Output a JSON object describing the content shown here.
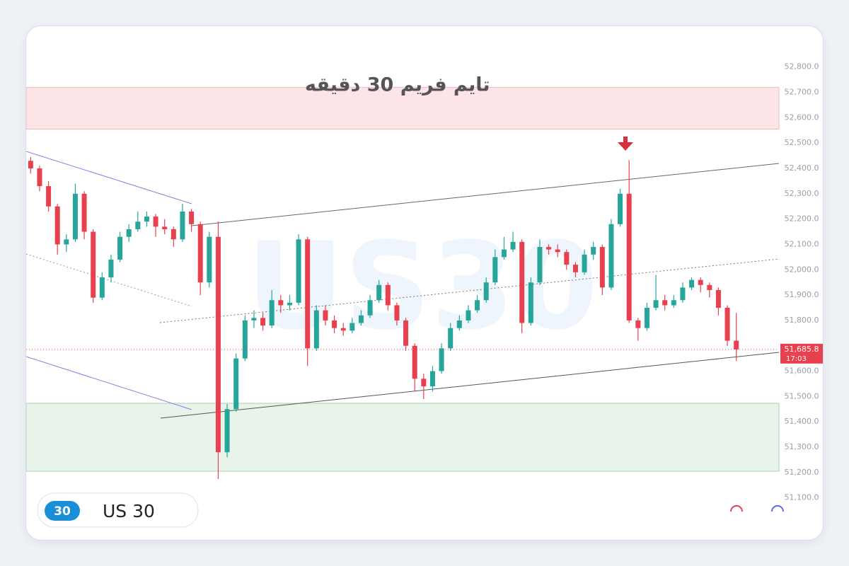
{
  "chart_data": {
    "type": "candlestick",
    "title": "تايم فريم 30 دقيقه",
    "watermark": "US30",
    "symbol": "US 30",
    "badge": "30",
    "up_color": "#26a69a",
    "down_color": "#e8404f",
    "ylim": [
      50940,
      52950
    ],
    "yticks": [
      {
        "value": 51100,
        "label": "51,100.0"
      },
      {
        "value": 51200,
        "label": "51,200.0"
      },
      {
        "value": 51300,
        "label": "51,300.0"
      },
      {
        "value": 51400,
        "label": "51,400.0"
      },
      {
        "value": 51500,
        "label": "51,500.0"
      },
      {
        "value": 51600,
        "label": "51,600.0"
      },
      {
        "value": 51800,
        "label": "51,800.0"
      },
      {
        "value": 51900,
        "label": "51,900.0"
      },
      {
        "value": 52000,
        "label": "52,000.0"
      },
      {
        "value": 52100,
        "label": "52,100.0"
      },
      {
        "value": 52200,
        "label": "52,200.0"
      },
      {
        "value": 52300,
        "label": "52,300.0"
      },
      {
        "value": 52400,
        "label": "52,400.0"
      },
      {
        "value": 52500,
        "label": "52,500.0"
      },
      {
        "value": 52600,
        "label": "52,600.0"
      },
      {
        "value": 52700,
        "label": "52,700.0"
      },
      {
        "value": 52800,
        "label": "52,800.0"
      }
    ],
    "last_price": {
      "value": 51685.8,
      "label": "51,685.8"
    },
    "countdown": "17:03",
    "zones": [
      {
        "low": 52555,
        "high": 52720,
        "color": "#fde4e6",
        "border": "#f4b9bf"
      },
      {
        "low": 51205,
        "high": 51473,
        "color": "#e8f3ea",
        "border": "#a9d5b4"
      }
    ],
    "ohlc": [
      [
        52430,
        52445,
        52380,
        52400
      ],
      [
        52400,
        52410,
        52310,
        52330
      ],
      [
        52330,
        52350,
        52230,
        52250
      ],
      [
        52250,
        52260,
        52060,
        52100
      ],
      [
        52100,
        52140,
        52070,
        52120
      ],
      [
        52120,
        52340,
        52110,
        52300
      ],
      [
        52300,
        52310,
        52120,
        52150
      ],
      [
        52150,
        52160,
        51870,
        51890
      ],
      [
        51890,
        51990,
        51880,
        51970
      ],
      [
        51970,
        52060,
        51950,
        52040
      ],
      [
        52040,
        52150,
        52030,
        52130
      ],
      [
        52130,
        52180,
        52110,
        52160
      ],
      [
        52160,
        52230,
        52150,
        52190
      ],
      [
        52190,
        52230,
        52170,
        52210
      ],
      [
        52210,
        52220,
        52130,
        52170
      ],
      [
        52170,
        52200,
        52140,
        52160
      ],
      [
        52160,
        52170,
        52090,
        52120
      ],
      [
        52120,
        52260,
        52110,
        52230
      ],
      [
        52230,
        52240,
        52150,
        52180
      ],
      [
        52180,
        52190,
        51900,
        51950
      ],
      [
        51950,
        52150,
        51930,
        52130
      ],
      [
        52130,
        52190,
        51175,
        51280
      ],
      [
        51280,
        51470,
        51260,
        51450
      ],
      [
        51450,
        51670,
        51440,
        51650
      ],
      [
        51650,
        51820,
        51640,
        51800
      ],
      [
        51800,
        51840,
        51770,
        51810
      ],
      [
        51810,
        51830,
        51760,
        51780
      ],
      [
        51780,
        51920,
        51770,
        51880
      ],
      [
        51880,
        51900,
        51830,
        51860
      ],
      [
        51860,
        51900,
        51840,
        51870
      ],
      [
        51870,
        52140,
        51860,
        52120
      ],
      [
        52120,
        52130,
        51620,
        51690
      ],
      [
        51690,
        51860,
        51680,
        51840
      ],
      [
        51840,
        51860,
        51780,
        51800
      ],
      [
        51800,
        51820,
        51750,
        51770
      ],
      [
        51770,
        51790,
        51740,
        51760
      ],
      [
        51760,
        51810,
        51750,
        51790
      ],
      [
        51790,
        51840,
        51780,
        51820
      ],
      [
        51820,
        51900,
        51810,
        51880
      ],
      [
        51880,
        51960,
        51870,
        51940
      ],
      [
        51940,
        51950,
        51840,
        51860
      ],
      [
        51860,
        51870,
        51780,
        51800
      ],
      [
        51800,
        51810,
        51680,
        51700
      ],
      [
        51700,
        51710,
        51520,
        51570
      ],
      [
        51570,
        51590,
        51490,
        51540
      ],
      [
        51540,
        51620,
        51520,
        51600
      ],
      [
        51600,
        51710,
        51590,
        51690
      ],
      [
        51690,
        51790,
        51680,
        51770
      ],
      [
        51770,
        51820,
        51760,
        51800
      ],
      [
        51800,
        51860,
        51790,
        51840
      ],
      [
        51840,
        51900,
        51830,
        51880
      ],
      [
        51880,
        51970,
        51870,
        51950
      ],
      [
        51950,
        52080,
        51940,
        52050
      ],
      [
        52050,
        52130,
        52040,
        52080
      ],
      [
        52080,
        52150,
        52070,
        52110
      ],
      [
        52110,
        52120,
        51750,
        51790
      ],
      [
        51790,
        51970,
        51780,
        51950
      ],
      [
        51950,
        52120,
        51940,
        52090
      ],
      [
        52090,
        52100,
        52060,
        52080
      ],
      [
        52080,
        52100,
        52050,
        52070
      ],
      [
        52070,
        52080,
        52000,
        52020
      ],
      [
        52020,
        52030,
        51970,
        51990
      ],
      [
        51990,
        52080,
        51980,
        52060
      ],
      [
        52060,
        52110,
        52040,
        52090
      ],
      [
        52090,
        52100,
        51900,
        51930
      ],
      [
        51930,
        52200,
        51920,
        52180
      ],
      [
        52180,
        52320,
        52170,
        52300
      ],
      [
        52300,
        52433,
        51790,
        51800
      ],
      [
        51800,
        51810,
        51720,
        51770
      ],
      [
        51770,
        51870,
        51760,
        51850
      ],
      [
        51850,
        51980,
        51840,
        51880
      ],
      [
        51880,
        51900,
        51840,
        51860
      ],
      [
        51860,
        51900,
        51850,
        51880
      ],
      [
        51880,
        51950,
        51870,
        51930
      ],
      [
        51930,
        51970,
        51920,
        51960
      ],
      [
        51960,
        51970,
        51910,
        51940
      ],
      [
        51940,
        51950,
        51890,
        51920
      ],
      [
        51920,
        51930,
        51820,
        51850
      ],
      [
        51850,
        51860,
        51700,
        51720
      ],
      [
        51720,
        51830,
        51640,
        51685.8
      ]
    ]
  }
}
